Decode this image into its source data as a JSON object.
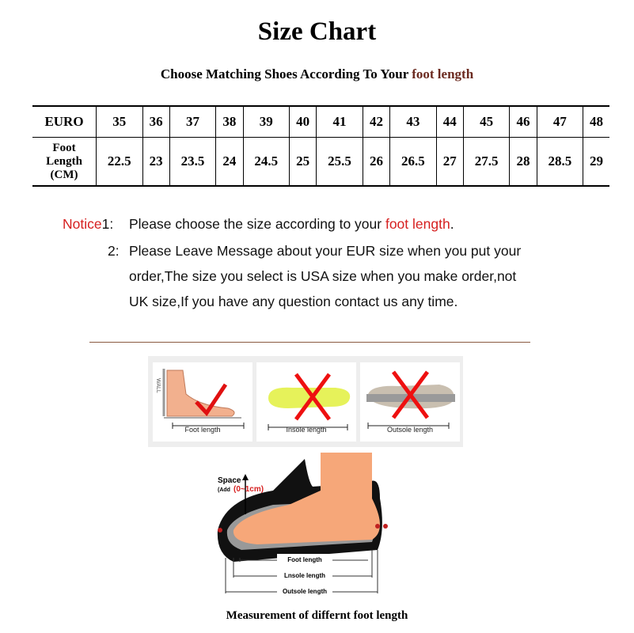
{
  "title": "Size Chart",
  "subtitle": {
    "text": "Choose Matching Shoes According To Your ",
    "highlight": "foot length"
  },
  "table": {
    "row1_header": "EURO",
    "row2_header": [
      "Foot",
      "Length",
      "(CM)"
    ],
    "euro": [
      "35",
      "36",
      "37",
      "38",
      "39",
      "40",
      "41",
      "42",
      "43",
      "44",
      "45",
      "46",
      "47",
      "48"
    ],
    "foot_length_cm": [
      "22.5",
      "23",
      "23.5",
      "24",
      "24.5",
      "25",
      "25.5",
      "26",
      "26.5",
      "27",
      "27.5",
      "28",
      "28.5",
      "29"
    ]
  },
  "notice": {
    "label": "Notice",
    "item1_num": "1:",
    "item1_text": "Please choose the size according to your ",
    "item1_highlight": "foot length",
    "item1_end": ".",
    "item2_num": "2:",
    "item2_lines": [
      "Please Leave Message about your EUR size when you put your",
      "order,The size you select is USA size when you make order,not",
      "UK size,If you have any question  contact us any time."
    ]
  },
  "panels": [
    {
      "label": "Foot length",
      "mark": "check",
      "wall": "WALL"
    },
    {
      "label": "Insole length",
      "mark": "cross"
    },
    {
      "label": "Outsole length",
      "mark": "cross"
    }
  ],
  "diagram": {
    "space": "Space",
    "add_prefix": "(Add",
    "add_value": "(0~1cm)",
    "foot_length": "Foot length",
    "insole_length": "Lnsole length",
    "outsole_length": "Outsole length"
  },
  "caption": "Measurement of differnt foot length",
  "colors": {
    "accent_red": "#d62020",
    "subtitle_highlight": "#6b2a20",
    "foot": "#f6a779",
    "insole": "#e6f25a"
  }
}
